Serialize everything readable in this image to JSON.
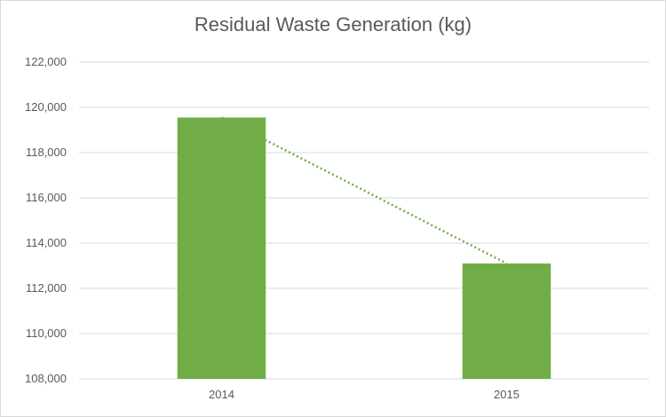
{
  "chart_data": {
    "type": "bar",
    "title": "Residual Waste Generation (kg)",
    "xlabel": "",
    "ylabel": "",
    "categories": [
      "2014",
      "2015"
    ],
    "values": [
      119550,
      113100
    ],
    "ylim": [
      108000,
      122000
    ],
    "yticks": [
      108000,
      110000,
      112000,
      114000,
      116000,
      118000,
      120000,
      122000
    ],
    "ytick_labels": [
      "108,000",
      "110,000",
      "112,000",
      "114,000",
      "116,000",
      "118,000",
      "120,000",
      "122,000"
    ],
    "grid": true,
    "legend": "none",
    "trendline": "linear, dotted",
    "colors": {
      "bar": "#70ad47",
      "trendline": "#70ad47",
      "grid": "#d9d9d9",
      "text": "#595959"
    }
  }
}
